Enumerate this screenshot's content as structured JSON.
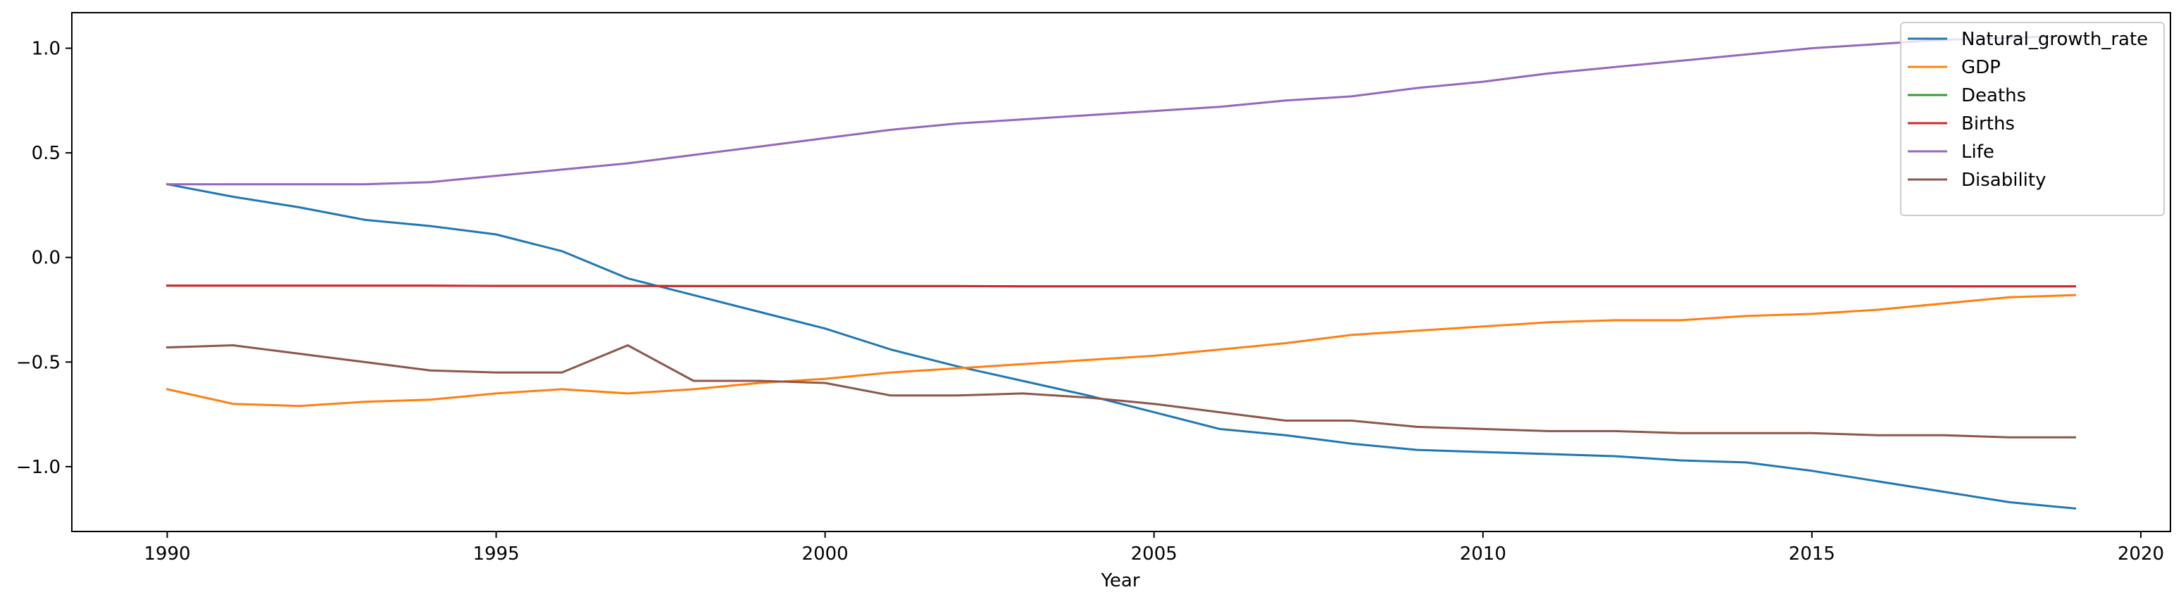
{
  "chart_data": {
    "type": "line",
    "title": "",
    "xlabel": "Year",
    "ylabel": "",
    "xlim": [
      1988.55,
      2020.45
    ],
    "ylim": [
      -1.31,
      1.17
    ],
    "xticks": [
      1990,
      1995,
      2000,
      2005,
      2010,
      2015,
      2020
    ],
    "xtick_labels": [
      "1990",
      "1995",
      "2000",
      "2005",
      "2010",
      "2015",
      "2020"
    ],
    "yticks": [
      -1.0,
      -0.5,
      0.0,
      0.5,
      1.0
    ],
    "ytick_labels": [
      "−1.0",
      "−0.5",
      "0.0",
      "0.5",
      "1.0"
    ],
    "grid": false,
    "legend_position": "top-right",
    "x": [
      1990,
      1991,
      1992,
      1993,
      1994,
      1995,
      1996,
      1997,
      1998,
      1999,
      2000,
      2001,
      2002,
      2003,
      2004,
      2005,
      2006,
      2007,
      2008,
      2009,
      2010,
      2011,
      2012,
      2013,
      2014,
      2015,
      2016,
      2017,
      2018,
      2019
    ],
    "series": [
      {
        "name": "Natural_growth_rate",
        "color": "#1f77b4",
        "values": [
          0.35,
          0.29,
          0.24,
          0.18,
          0.15,
          0.11,
          0.03,
          -0.1,
          -0.18,
          -0.26,
          -0.34,
          -0.44,
          -0.52,
          -0.59,
          -0.66,
          -0.74,
          -0.82,
          -0.85,
          -0.89,
          -0.92,
          -0.93,
          -0.94,
          -0.95,
          -0.97,
          -0.98,
          -1.02,
          -1.07,
          -1.12,
          -1.17,
          -1.2
        ]
      },
      {
        "name": "GDP",
        "color": "#ff7f0e",
        "values": [
          -0.63,
          -0.7,
          -0.71,
          -0.69,
          -0.68,
          -0.65,
          -0.63,
          -0.65,
          -0.63,
          -0.6,
          -0.58,
          -0.55,
          -0.53,
          -0.51,
          -0.49,
          -0.47,
          -0.44,
          -0.41,
          -0.37,
          -0.35,
          -0.33,
          -0.31,
          -0.3,
          -0.3,
          -0.28,
          -0.27,
          -0.25,
          -0.22,
          -0.19,
          -0.18
        ]
      },
      {
        "name": "Deaths",
        "color": "#2ca02c",
        "values": [
          -0.135,
          -0.135,
          -0.135,
          -0.135,
          -0.135,
          -0.136,
          -0.136,
          -0.136,
          -0.137,
          -0.137,
          -0.137,
          -0.137,
          -0.137,
          -0.138,
          -0.138,
          -0.138,
          -0.138,
          -0.138,
          -0.138,
          -0.138,
          -0.138,
          -0.138,
          -0.138,
          -0.138,
          -0.138,
          -0.138,
          -0.138,
          -0.138,
          -0.138,
          -0.138
        ]
      },
      {
        "name": "Births",
        "color": "#d62728",
        "values": [
          -0.135,
          -0.135,
          -0.135,
          -0.135,
          -0.135,
          -0.136,
          -0.136,
          -0.136,
          -0.137,
          -0.137,
          -0.137,
          -0.137,
          -0.137,
          -0.138,
          -0.138,
          -0.138,
          -0.138,
          -0.138,
          -0.138,
          -0.138,
          -0.138,
          -0.138,
          -0.138,
          -0.138,
          -0.138,
          -0.138,
          -0.138,
          -0.138,
          -0.138,
          -0.138
        ]
      },
      {
        "name": "Life",
        "color": "#9467bd",
        "values": [
          0.35,
          0.35,
          0.35,
          0.35,
          0.36,
          0.39,
          0.42,
          0.45,
          0.49,
          0.53,
          0.57,
          0.61,
          0.64,
          0.66,
          0.68,
          0.7,
          0.72,
          0.75,
          0.77,
          0.81,
          0.84,
          0.88,
          0.91,
          0.94,
          0.97,
          1.0,
          1.02,
          1.04,
          1.05,
          1.06
        ]
      },
      {
        "name": "Disability",
        "color": "#8c564b",
        "values": [
          -0.43,
          -0.42,
          -0.46,
          -0.5,
          -0.54,
          -0.55,
          -0.55,
          -0.42,
          -0.59,
          -0.59,
          -0.6,
          -0.66,
          -0.66,
          -0.65,
          -0.67,
          -0.7,
          -0.74,
          -0.78,
          -0.78,
          -0.81,
          -0.82,
          -0.83,
          -0.83,
          -0.84,
          -0.84,
          -0.84,
          -0.85,
          -0.85,
          -0.86,
          -0.86
        ]
      }
    ]
  }
}
